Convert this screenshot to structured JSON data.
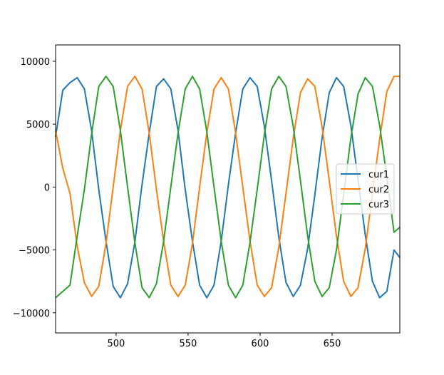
{
  "chart_data": {
    "type": "line",
    "title": "",
    "xlabel": "",
    "ylabel": "",
    "xlim": [
      458,
      697
    ],
    "ylim": [
      -11600,
      11300
    ],
    "x_ticks": [
      500,
      550,
      600,
      650
    ],
    "x_tick_labels": [
      "500",
      "550",
      "600",
      "650"
    ],
    "y_ticks": [
      10000,
      5000,
      0,
      -5000,
      -10000
    ],
    "y_tick_labels": [
      "10000",
      "5000",
      "0",
      "−5000",
      "−10000"
    ],
    "grid": false,
    "legend_position": "center-right",
    "x": [
      458,
      463,
      468,
      473,
      478,
      483,
      488,
      493,
      498,
      503,
      508,
      513,
      518,
      523,
      528,
      533,
      538,
      543,
      548,
      553,
      558,
      563,
      568,
      573,
      578,
      583,
      588,
      593,
      598,
      603,
      608,
      613,
      618,
      623,
      628,
      633,
      638,
      643,
      648,
      653,
      658,
      663,
      668,
      673,
      678,
      683,
      688,
      693,
      697
    ],
    "series": [
      {
        "name": "cur1",
        "color": "#1f77b4",
        "values": [
          4000,
          7700,
          8300,
          8700,
          7800,
          4500,
          -200,
          -4300,
          -7900,
          -8800,
          -7700,
          -4400,
          200,
          4300,
          8000,
          8600,
          7800,
          4500,
          -200,
          -4300,
          -7800,
          -8800,
          -7800,
          -4300,
          200,
          4300,
          7800,
          8700,
          8000,
          4800,
          500,
          -4000,
          -7600,
          -8700,
          -7800,
          -4900,
          -600,
          3900,
          7500,
          8700,
          8000,
          4900,
          600,
          -3800,
          -7500,
          -8800,
          -8300,
          -5000,
          -5600
        ]
      },
      {
        "name": "cur2",
        "color": "#ff7f0e",
        "values": [
          4500,
          1500,
          -500,
          -4700,
          -7600,
          -8700,
          -7900,
          -4500,
          0,
          4500,
          8000,
          8800,
          7800,
          4300,
          -200,
          -4300,
          -7800,
          -8700,
          -7800,
          -4500,
          0,
          4300,
          7800,
          8700,
          7800,
          4300,
          0,
          -4300,
          -7800,
          -8700,
          -8000,
          -4800,
          -500,
          3900,
          7500,
          8600,
          8000,
          4800,
          500,
          -3900,
          -7500,
          -8700,
          -8000,
          -4900,
          -500,
          3800,
          7600,
          8800,
          8800
        ]
      },
      {
        "name": "cur3",
        "color": "#2ca02c",
        "values": [
          -8800,
          -8300,
          -7800,
          -3900,
          -200,
          4200,
          8000,
          8800,
          8000,
          4500,
          0,
          -4400,
          -8000,
          -8800,
          -7700,
          -4300,
          0,
          4300,
          7800,
          8800,
          7800,
          4400,
          0,
          -4300,
          -7800,
          -8800,
          -7800,
          -4400,
          -200,
          4200,
          7800,
          8800,
          8000,
          4800,
          500,
          -3900,
          -7500,
          -8700,
          -8000,
          -5000,
          -600,
          3900,
          7400,
          8700,
          8000,
          4900,
          800,
          -3600,
          -3200
        ]
      }
    ]
  }
}
